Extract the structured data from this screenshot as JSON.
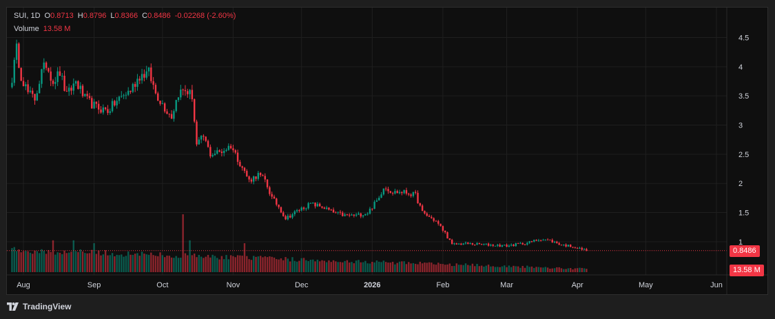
{
  "legend": {
    "symbol": "SUI, 1D",
    "open_label": "O",
    "open": "0.8713",
    "high_label": "H",
    "high": "0.8796",
    "low_label": "L",
    "low": "0.8366",
    "close_label": "C",
    "close": "0.8486",
    "change": "-0.02268 (-2.60%)",
    "volume_label": "Volume",
    "volume": "13.58 M"
  },
  "price_tag": "0.8486",
  "volume_tag": "13.58 M",
  "branding": "TradingView",
  "colors": {
    "up": "#089981",
    "down": "#f23645",
    "background": "#0f0f0f",
    "grid": "#1f1f1f",
    "text": "#d1d4dc"
  },
  "chart_data": {
    "type": "candlestick",
    "title": "SUI, 1D",
    "y_ticks": [
      1,
      1.5,
      2,
      2.5,
      3,
      3.5,
      4,
      4.5
    ],
    "ylim": [
      0.81,
      4.73
    ],
    "x_ticks": [
      "Aug",
      "Sep",
      "Oct",
      "Nov",
      "Dec",
      "2026",
      "Feb",
      "Mar",
      "Apr",
      "May",
      "Jun"
    ],
    "last_price": 0.8486,
    "last_volume": "13.58 M",
    "close_series": [
      {
        "x": "Jul 27",
        "y": 3.8
      },
      {
        "x": "Jul 29",
        "y": 4.3
      },
      {
        "x": "Jul 31",
        "y": 3.85
      },
      {
        "x": "Aug 3",
        "y": 3.55
      },
      {
        "x": "Aug 6",
        "y": 3.45
      },
      {
        "x": "Aug 9",
        "y": 3.9
      },
      {
        "x": "Aug 11",
        "y": 4.05
      },
      {
        "x": "Aug 14",
        "y": 3.75
      },
      {
        "x": "Aug 17",
        "y": 3.9
      },
      {
        "x": "Aug 20",
        "y": 3.5
      },
      {
        "x": "Aug 24",
        "y": 3.75
      },
      {
        "x": "Aug 28",
        "y": 3.45
      },
      {
        "x": "Sep 2",
        "y": 3.3
      },
      {
        "x": "Sep 7",
        "y": 3.25
      },
      {
        "x": "Sep 12",
        "y": 3.45
      },
      {
        "x": "Sep 17",
        "y": 3.6
      },
      {
        "x": "Sep 21",
        "y": 3.85
      },
      {
        "x": "Sep 25",
        "y": 3.9
      },
      {
        "x": "Sep 28",
        "y": 3.55
      },
      {
        "x": "Oct 2",
        "y": 3.3
      },
      {
        "x": "Oct 5",
        "y": 3.15
      },
      {
        "x": "Oct 8",
        "y": 3.55
      },
      {
        "x": "Oct 11",
        "y": 3.6
      },
      {
        "x": "Oct 14",
        "y": 3.5
      },
      {
        "x": "Oct 16",
        "y": 2.65
      },
      {
        "x": "Oct 19",
        "y": 2.8
      },
      {
        "x": "Oct 22",
        "y": 2.5
      },
      {
        "x": "Oct 27",
        "y": 2.55
      },
      {
        "x": "Oct 31",
        "y": 2.65
      },
      {
        "x": "Nov 4",
        "y": 2.35
      },
      {
        "x": "Nov 8",
        "y": 2.05
      },
      {
        "x": "Nov 12",
        "y": 2.15
      },
      {
        "x": "Nov 15",
        "y": 2.05
      },
      {
        "x": "Nov 18",
        "y": 1.75
      },
      {
        "x": "Nov 21",
        "y": 1.6
      },
      {
        "x": "Nov 24",
        "y": 1.4
      },
      {
        "x": "Nov 30",
        "y": 1.55
      },
      {
        "x": "Dec 5",
        "y": 1.65
      },
      {
        "x": "Dec 10",
        "y": 1.6
      },
      {
        "x": "Dec 15",
        "y": 1.5
      },
      {
        "x": "Dec 20",
        "y": 1.45
      },
      {
        "x": "Dec 25",
        "y": 1.45
      },
      {
        "x": "Dec 30",
        "y": 1.5
      },
      {
        "x": "Jan 4",
        "y": 1.75
      },
      {
        "x": "Jan 6",
        "y": 1.95
      },
      {
        "x": "Jan 10",
        "y": 1.85
      },
      {
        "x": "Jan 15",
        "y": 1.85
      },
      {
        "x": "Jan 20",
        "y": 1.8
      },
      {
        "x": "Jan 23",
        "y": 1.5
      },
      {
        "x": "Jan 29",
        "y": 1.35
      },
      {
        "x": "Feb 2",
        "y": 1.15
      },
      {
        "x": "Feb 5",
        "y": 0.95
      },
      {
        "x": "Feb 10",
        "y": 0.97
      },
      {
        "x": "Feb 20",
        "y": 0.95
      },
      {
        "x": "Mar 1",
        "y": 0.93
      },
      {
        "x": "Mar 10",
        "y": 0.98
      },
      {
        "x": "Mar 16",
        "y": 1.05
      },
      {
        "x": "Mar 20",
        "y": 1.02
      },
      {
        "x": "Mar 25",
        "y": 0.95
      },
      {
        "x": "Mar 30",
        "y": 0.92
      },
      {
        "x": "Apr 2",
        "y": 0.88
      },
      {
        "x": "Apr 5",
        "y": 0.85
      }
    ],
    "volume_spikes": [
      {
        "x": "Aug 14",
        "relative": 0.55
      },
      {
        "x": "Aug 23",
        "relative": 0.55
      },
      {
        "x": "Sep 1",
        "relative": 0.5
      },
      {
        "x": "Oct 10",
        "relative": 1.0
      },
      {
        "x": "Oct 13",
        "relative": 0.55
      },
      {
        "x": "Nov 6",
        "relative": 0.5
      }
    ]
  }
}
